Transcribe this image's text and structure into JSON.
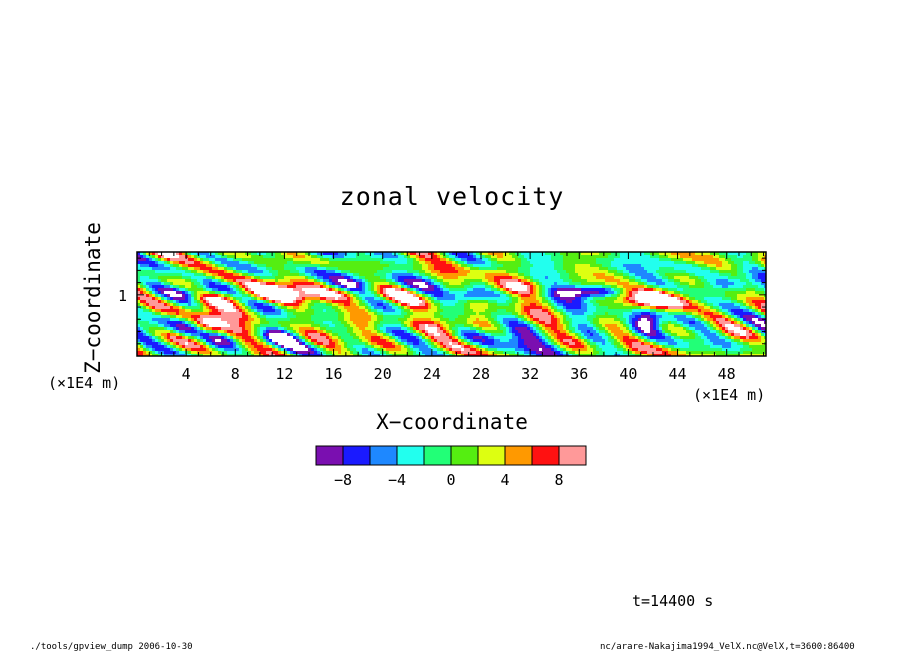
{
  "chart_data": {
    "type": "heatmap",
    "title": "zonal velocity",
    "xlabel": "X−coordinate",
    "ylabel": "Z−coordinate",
    "x_unit": "(×1E4 m)",
    "y_unit": "(×1E4 m)",
    "xlim": [
      0,
      51.2
    ],
    "ylim": [
      0,
      1.7
    ],
    "x_ticks": [
      4,
      8,
      12,
      16,
      20,
      24,
      28,
      32,
      36,
      40,
      44,
      48
    ],
    "y_ticks": [
      1
    ],
    "colorbar": {
      "levels": [
        -10,
        -8,
        -6,
        -4,
        -2,
        0,
        2,
        4,
        6,
        8,
        10
      ],
      "tick_labels": [
        -8,
        -4,
        0,
        4,
        8
      ],
      "colors": [
        "#7a0fb0",
        "#1a1aff",
        "#1e88ff",
        "#22ffee",
        "#22ff77",
        "#55ee11",
        "#ddff11",
        "#ff9900",
        "#ff1111",
        "#ff9999"
      ],
      "below_min_color": "#ffffff",
      "above_max_color": "#ffffff"
    }
  },
  "annotations": {
    "time": "t=14400 s",
    "footer_left": "./tools/gpview_dump  2006-10-30",
    "footer_right": "nc/arare-Nakajima1994_VelX.nc@VelX,t=3600:86400"
  }
}
